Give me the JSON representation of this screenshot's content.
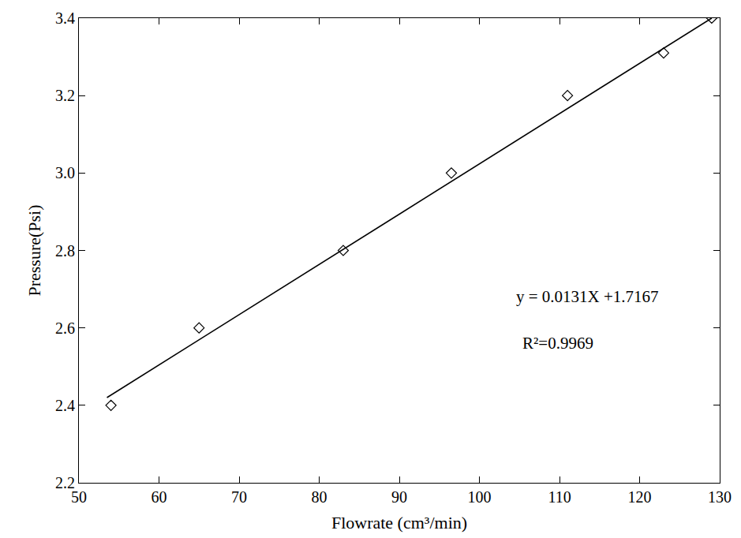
{
  "chart_data": {
    "type": "scatter",
    "x_label": "Flowrate (cm³/min)",
    "y_label": "Pressure(Psi)",
    "annotations": [
      "y = 0.0131X +1.7167",
      "R²=0.9969"
    ],
    "xlim": [
      50,
      130
    ],
    "xticks": [
      50,
      60,
      70,
      80,
      90,
      100,
      110,
      120,
      130
    ],
    "ylim": [
      2.2,
      3.4
    ],
    "yticks": [
      2.2,
      2.4,
      2.6,
      2.8,
      {
        "value": 3,
        "label": "3.0"
      },
      3.2,
      3.4
    ],
    "grid": false,
    "series": [
      {
        "type": "scatter",
        "marker": "diamond-open",
        "color": "#000000",
        "x": [
          54,
          65,
          83,
          96.5,
          111,
          123,
          129
        ],
        "values": [
          2.4,
          2.6,
          2.8,
          3.0,
          3.2,
          3.31,
          3.4
        ]
      },
      {
        "type": "line",
        "line_style": "solid",
        "color": "#000000",
        "x": [
          53.5,
          129
        ],
        "values": [
          2.42,
          3.4
        ]
      }
    ]
  }
}
